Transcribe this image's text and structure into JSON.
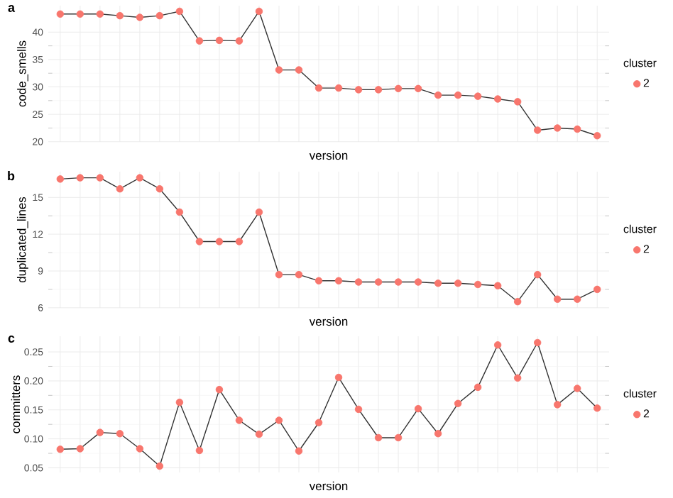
{
  "chart_data": [
    {
      "type": "scatter",
      "title": "a",
      "xlabel": "version",
      "ylabel": "code_smells",
      "legend_title": "cluster",
      "categories": [
        null,
        null,
        null,
        null,
        null,
        null,
        null,
        null,
        null,
        null,
        null,
        null,
        null,
        null,
        null,
        null,
        null,
        null,
        null,
        null,
        null,
        null,
        null,
        null,
        null,
        null,
        null,
        null
      ],
      "series": [
        {
          "type": "line",
          "marker": "none",
          "color": "#333333",
          "values": [
            43.3,
            43.3,
            43.3,
            43.0,
            42.7,
            43.0,
            43.8,
            38.4,
            38.5,
            38.4,
            43.8,
            33.1,
            33.1,
            29.8,
            29.8,
            29.5,
            29.5,
            29.7,
            29.7,
            28.5,
            28.5,
            28.3,
            27.8,
            27.3,
            22.1,
            22.5,
            22.3,
            21.1
          ]
        },
        {
          "name": "2",
          "marker": "circle",
          "color": "#f8766d",
          "values": [
            43.3,
            43.3,
            43.3,
            43.0,
            42.7,
            43.0,
            43.8,
            38.4,
            38.5,
            38.4,
            43.8,
            33.1,
            33.1,
            29.8,
            29.8,
            29.5,
            29.5,
            29.7,
            29.7,
            28.5,
            28.5,
            28.3,
            27.8,
            27.3,
            22.1,
            22.5,
            22.3,
            21.1
          ]
        }
      ],
      "ylim": [
        19.97,
        44.83
      ],
      "yticks": [
        20,
        25,
        30,
        35,
        40
      ],
      "grid": true,
      "legend": "right",
      "line_style": "solid",
      "tick_labels": "y"
    },
    {
      "type": "scatter",
      "title": "b",
      "xlabel": "version",
      "ylabel": "duplicated_lines",
      "legend_title": "cluster",
      "categories": [
        null,
        null,
        null,
        null,
        null,
        null,
        null,
        null,
        null,
        null,
        null,
        null,
        null,
        null,
        null,
        null,
        null,
        null,
        null,
        null,
        null,
        null,
        null,
        null,
        null,
        null,
        null,
        null
      ],
      "series": [
        {
          "type": "line",
          "marker": "none",
          "color": "#333333",
          "values": [
            16.5,
            16.6,
            16.6,
            15.7,
            16.6,
            15.7,
            13.8,
            11.4,
            11.4,
            11.4,
            13.8,
            8.7,
            8.7,
            8.2,
            8.2,
            8.1,
            8.1,
            8.1,
            8.1,
            8.0,
            8.0,
            7.9,
            7.8,
            6.5,
            8.7,
            6.7,
            6.7,
            7.5
          ]
        },
        {
          "name": "2",
          "marker": "circle",
          "color": "#f8766d",
          "values": [
            16.5,
            16.6,
            16.6,
            15.7,
            16.6,
            15.7,
            13.8,
            11.4,
            11.4,
            11.4,
            13.8,
            8.7,
            8.7,
            8.2,
            8.2,
            8.1,
            8.1,
            8.1,
            8.1,
            8.0,
            8.0,
            7.9,
            7.8,
            6.5,
            8.7,
            6.7,
            6.7,
            7.5
          ]
        }
      ],
      "ylim": [
        5.99,
        17.1
      ],
      "yticks": [
        6,
        9,
        12,
        15
      ],
      "grid": true,
      "legend": "right",
      "line_style": "solid",
      "tick_labels": "y"
    },
    {
      "type": "scatter",
      "title": "c",
      "xlabel": "version",
      "ylabel": "committers",
      "legend_title": "cluster",
      "categories": [
        null,
        null,
        null,
        null,
        null,
        null,
        null,
        null,
        null,
        null,
        null,
        null,
        null,
        null,
        null,
        null,
        null,
        null,
        null,
        null,
        null,
        null,
        null,
        null,
        null,
        null,
        null,
        null
      ],
      "series": [
        {
          "type": "line",
          "marker": "none",
          "color": "#333333",
          "values": [
            0.082,
            0.083,
            0.111,
            0.109,
            0.083,
            0.053,
            0.163,
            0.08,
            0.185,
            0.132,
            0.108,
            0.132,
            0.079,
            0.128,
            0.206,
            0.151,
            0.102,
            0.102,
            0.152,
            0.109,
            0.161,
            0.189,
            0.262,
            0.205,
            0.266,
            0.159,
            0.187,
            0.153
          ]
        },
        {
          "name": "2",
          "marker": "circle",
          "color": "#f8766d",
          "values": [
            0.082,
            0.083,
            0.111,
            0.109,
            0.083,
            0.053,
            0.163,
            0.08,
            0.185,
            0.132,
            0.108,
            0.132,
            0.079,
            0.128,
            0.206,
            0.151,
            0.102,
            0.102,
            0.152,
            0.109,
            0.161,
            0.189,
            0.262,
            0.205,
            0.266,
            0.159,
            0.187,
            0.153
          ]
        }
      ],
      "ylim": [
        0.042,
        0.277
      ],
      "yticks": [
        {
          "value": 0.05,
          "label": "0.05"
        },
        {
          "value": 0.1,
          "label": "0.10"
        },
        {
          "value": 0.15,
          "label": "0.15"
        },
        {
          "value": 0.2,
          "label": "0.20"
        },
        {
          "value": 0.25,
          "label": "0.25"
        }
      ],
      "grid": true,
      "legend": "right",
      "line_style": "solid",
      "tick_labels": "y"
    }
  ]
}
